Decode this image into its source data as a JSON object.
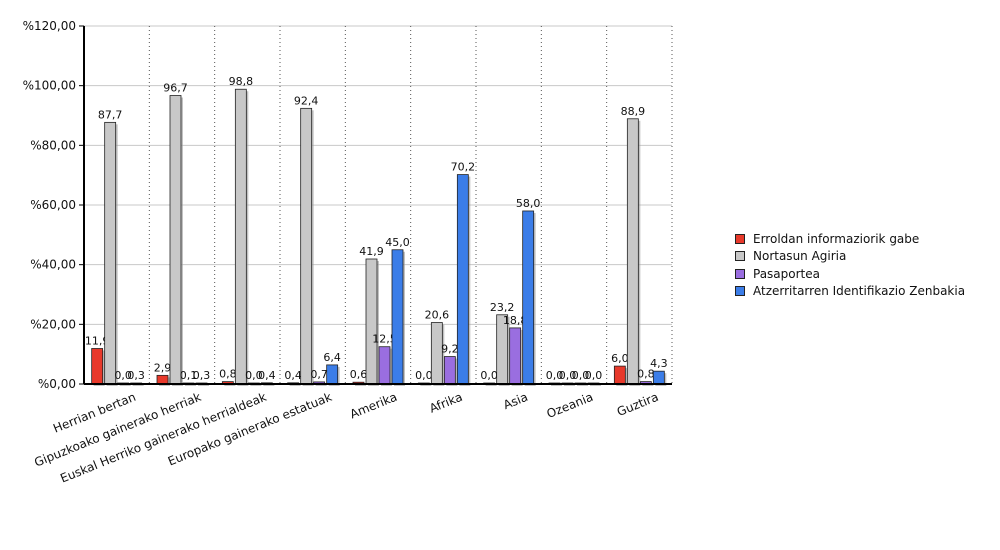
{
  "chart_data": {
    "type": "bar",
    "title": "",
    "xlabel": "",
    "ylabel": "",
    "ylim": [
      0,
      120
    ],
    "yticks": [
      "%0,00",
      "%20,00",
      "%40,00",
      "%60,00",
      "%80,00",
      "%100,00",
      "%120,00"
    ],
    "grid": true,
    "legend_position": "right",
    "categories": [
      "Herrian bertan",
      "Gipuzkoako gainerako herriak",
      "Euskal Herriko gainerako herrialdeak",
      "Europako gainerako estatuak",
      "Amerika",
      "Afrika",
      "Asia",
      "Ozeania",
      "Guztira"
    ],
    "series": [
      {
        "name": "Erroldan informaziorik gabe",
        "color": "#e8392b",
        "values": [
          11.9,
          2.9,
          0.8,
          0.4,
          0.6,
          0.0,
          0.0,
          0.0,
          6.0
        ],
        "labels": [
          "11,9",
          "2,9",
          "0,8",
          "0,4",
          "0,6",
          "0,0",
          "0,0",
          "0,0",
          "6,0"
        ]
      },
      {
        "name": "Nortasun Agiria",
        "color": "#c8c8c8",
        "values": [
          87.7,
          96.7,
          98.8,
          92.4,
          41.9,
          20.6,
          23.2,
          0.0,
          88.9
        ],
        "labels": [
          "87,7",
          "96,7",
          "98,8",
          "92,4",
          "41,9",
          "20,6",
          "23,2",
          "0,0",
          "88,9"
        ]
      },
      {
        "name": "Pasaportea",
        "color": "#9a6ee0",
        "values": [
          0.0,
          0.1,
          0.0,
          0.7,
          12.5,
          9.2,
          18.8,
          0.0,
          0.8
        ],
        "labels": [
          "0,0",
          "0,1",
          "0,0",
          "0,7",
          "12,5",
          "9,2",
          "18,8",
          "0,0",
          "0,8"
        ]
      },
      {
        "name": "Atzerritarren Identifikazio Zenbakia",
        "color": "#3b7de8",
        "values": [
          0.3,
          0.3,
          0.4,
          6.4,
          45.0,
          70.2,
          58.0,
          0.0,
          4.3
        ],
        "labels": [
          "0,3",
          "0,3",
          "0,4",
          "6,4",
          "45,0",
          "70,2",
          "58,0",
          "0,0",
          "4,3"
        ]
      }
    ]
  }
}
